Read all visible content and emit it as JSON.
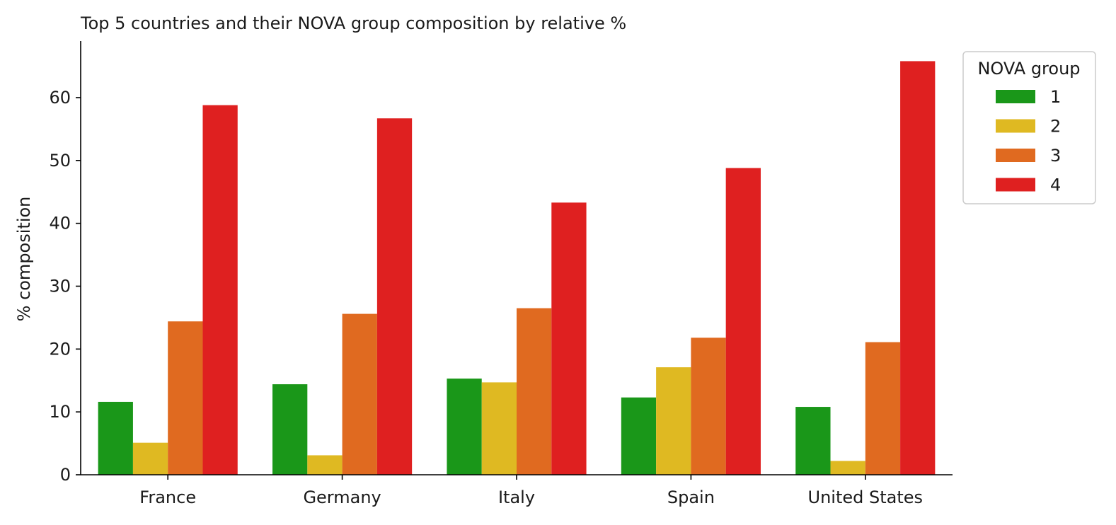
{
  "chart_data": {
    "type": "bar",
    "title": "Top 5 countries and their NOVA group composition by relative %",
    "xlabel": "",
    "ylabel": "% composition",
    "categories": [
      "France",
      "Germany",
      "Italy",
      "Spain",
      "United States"
    ],
    "ylim": [
      0,
      69
    ],
    "yticks": [
      0,
      10,
      20,
      30,
      40,
      50,
      60
    ],
    "grid": false,
    "legend": {
      "title": "NOVA group",
      "placement": "outside-top-right"
    },
    "series": [
      {
        "name": "1",
        "color": "#1a9719",
        "values": [
          11.6,
          14.4,
          15.3,
          12.3,
          10.8
        ]
      },
      {
        "name": "2",
        "color": "#dfb922",
        "values": [
          5.1,
          3.1,
          14.7,
          17.1,
          2.2
        ]
      },
      {
        "name": "3",
        "color": "#e06a20",
        "values": [
          24.4,
          25.6,
          26.5,
          21.8,
          21.1
        ]
      },
      {
        "name": "4",
        "color": "#df2020",
        "values": [
          58.8,
          56.7,
          43.3,
          48.8,
          65.8
        ]
      }
    ]
  }
}
